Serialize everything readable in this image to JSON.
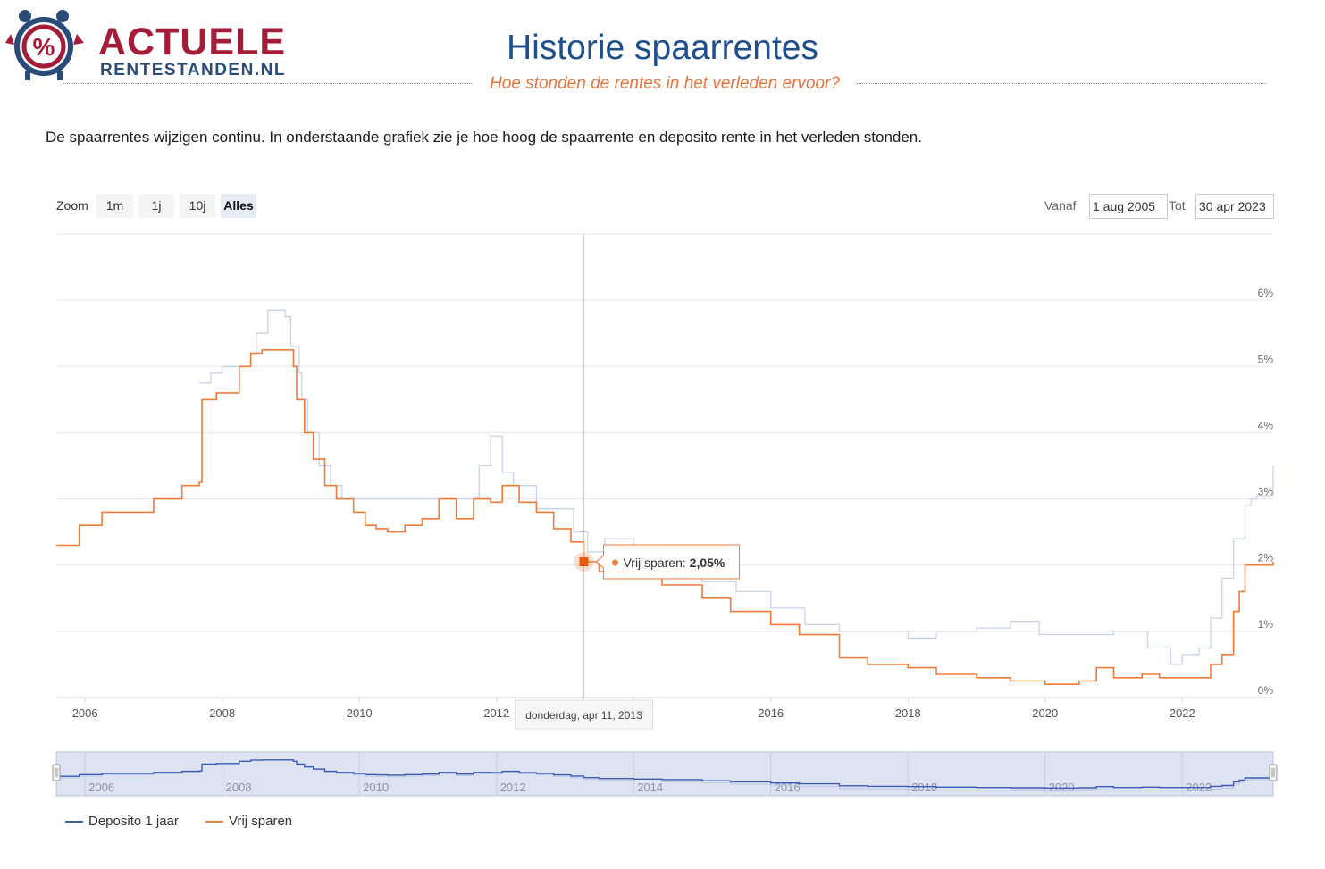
{
  "brand": {
    "name_line1": "ACTUELE",
    "name_line2": "RENTESTANDEN.NL"
  },
  "header": {
    "title": "Historie spaarrentes",
    "subtitle": "Hoe stonden de rentes in het verleden ervoor?"
  },
  "intro": "De spaarrentes wijzigen continu. In onderstaande grafiek zie je hoe hoog de spaarrente en deposito rente in het verleden stonden.",
  "range_selector": {
    "zoom_label": "Zoom",
    "buttons": [
      "1m",
      "1j",
      "10j",
      "Alles"
    ],
    "active": "Alles",
    "from_label": "Vanaf",
    "from_value": "1 aug 2005",
    "to_label": "Tot",
    "to_value": "30 apr 2023"
  },
  "tooltip": {
    "series": "Vrij sparen",
    "value": "2,05%",
    "date": "donderdag, apr 11, 2013"
  },
  "colors": {
    "deposito": "#3b5bb5",
    "vrij_sparen": "#f07c3a",
    "brand_red": "#a51c38",
    "brand_blue": "#1f4e8c"
  },
  "chart_data": {
    "type": "line",
    "x_tick_labels": [
      "2006",
      "2008",
      "2010",
      "2012",
      "2014",
      "2016",
      "2018",
      "2020",
      "2022"
    ],
    "y_tick_labels": [
      "0%",
      "1%",
      "2%",
      "3%",
      "4%",
      "5%",
      "6%"
    ],
    "ylim": [
      0,
      7
    ],
    "xlim": [
      "2005-08-01",
      "2023-04-30"
    ],
    "grid": true,
    "legend_position": "bottom-left",
    "navigator_labels": [
      "2006",
      "2008",
      "2010",
      "2012",
      "2014",
      "2016",
      "2018",
      "2020",
      "2022"
    ],
    "series": [
      {
        "name": "Deposito 1 jaar",
        "color": "#3b5bb5",
        "points": [
          [
            "2007-09-01",
            4.75
          ],
          [
            "2007-11-01",
            4.9
          ],
          [
            "2008-01-01",
            5.0
          ],
          [
            "2008-04-01",
            5.0
          ],
          [
            "2008-06-01",
            5.2
          ],
          [
            "2008-07-01",
            5.5
          ],
          [
            "2008-09-01",
            5.85
          ],
          [
            "2008-12-01",
            5.75
          ],
          [
            "2009-01-01",
            5.3
          ],
          [
            "2009-02-15",
            4.9
          ],
          [
            "2009-03-01",
            4.5
          ],
          [
            "2009-04-01",
            4.0
          ],
          [
            "2009-06-01",
            3.5
          ],
          [
            "2009-08-01",
            3.2
          ],
          [
            "2009-10-01",
            3.0
          ],
          [
            "2010-03-01",
            3.0
          ],
          [
            "2011-07-01",
            3.0
          ],
          [
            "2011-10-01",
            3.5
          ],
          [
            "2011-12-01",
            3.95
          ],
          [
            "2012-02-01",
            3.4
          ],
          [
            "2012-04-01",
            3.2
          ],
          [
            "2012-08-01",
            2.85
          ],
          [
            "2013-01-01",
            2.85
          ],
          [
            "2013-02-15",
            2.5
          ],
          [
            "2013-05-01",
            2.2
          ],
          [
            "2013-08-01",
            2.4
          ],
          [
            "2014-01-01",
            2.2
          ],
          [
            "2014-06-01",
            2.05
          ],
          [
            "2015-01-01",
            1.75
          ],
          [
            "2015-07-01",
            1.6
          ],
          [
            "2016-01-01",
            1.35
          ],
          [
            "2016-07-01",
            1.1
          ],
          [
            "2017-01-01",
            1.0
          ],
          [
            "2017-07-01",
            1.0
          ],
          [
            "2018-01-01",
            0.9
          ],
          [
            "2018-06-01",
            1.0
          ],
          [
            "2019-01-01",
            1.05
          ],
          [
            "2019-07-01",
            1.15
          ],
          [
            "2019-12-01",
            0.95
          ],
          [
            "2020-06-01",
            0.95
          ],
          [
            "2021-01-01",
            1.0
          ],
          [
            "2021-07-01",
            0.75
          ],
          [
            "2021-11-01",
            0.5
          ],
          [
            "2022-01-01",
            0.65
          ],
          [
            "2022-04-01",
            0.75
          ],
          [
            "2022-06-01",
            1.2
          ],
          [
            "2022-08-01",
            1.8
          ],
          [
            "2022-10-01",
            2.4
          ],
          [
            "2022-12-01",
            2.9
          ],
          [
            "2023-01-01",
            3.0
          ],
          [
            "2023-02-01",
            3.05
          ],
          [
            "2023-04-30",
            3.5
          ]
        ]
      },
      {
        "name": "Vrij sparen",
        "color": "#f07c3a",
        "points": [
          [
            "2005-08-01",
            2.3
          ],
          [
            "2005-12-01",
            2.6
          ],
          [
            "2006-04-01",
            2.8
          ],
          [
            "2006-08-01",
            2.8
          ],
          [
            "2007-01-01",
            3.0
          ],
          [
            "2007-06-01",
            3.2
          ],
          [
            "2007-09-01",
            3.25
          ],
          [
            "2007-09-15",
            4.5
          ],
          [
            "2007-12-01",
            4.6
          ],
          [
            "2008-04-01",
            5.0
          ],
          [
            "2008-06-01",
            5.2
          ],
          [
            "2008-08-01",
            5.25
          ],
          [
            "2008-12-01",
            5.25
          ],
          [
            "2009-01-15",
            5.0
          ],
          [
            "2009-02-01",
            4.5
          ],
          [
            "2009-03-15",
            4.0
          ],
          [
            "2009-05-01",
            3.6
          ],
          [
            "2009-07-01",
            3.2
          ],
          [
            "2009-09-01",
            3.0
          ],
          [
            "2009-12-01",
            2.8
          ],
          [
            "2010-02-01",
            2.6
          ],
          [
            "2010-04-01",
            2.55
          ],
          [
            "2010-06-01",
            2.5
          ],
          [
            "2010-09-01",
            2.6
          ],
          [
            "2010-12-01",
            2.7
          ],
          [
            "2011-03-01",
            3.0
          ],
          [
            "2011-06-01",
            2.7
          ],
          [
            "2011-09-01",
            3.0
          ],
          [
            "2011-12-01",
            2.95
          ],
          [
            "2012-02-01",
            3.2
          ],
          [
            "2012-05-01",
            2.95
          ],
          [
            "2012-08-01",
            2.8
          ],
          [
            "2012-11-01",
            2.55
          ],
          [
            "2013-02-01",
            2.35
          ],
          [
            "2013-04-11",
            2.05
          ],
          [
            "2013-07-01",
            1.9
          ],
          [
            "2014-01-01",
            1.8
          ],
          [
            "2014-06-01",
            1.7
          ],
          [
            "2015-01-01",
            1.5
          ],
          [
            "2015-06-01",
            1.3
          ],
          [
            "2016-01-01",
            1.1
          ],
          [
            "2016-06-01",
            0.95
          ],
          [
            "2017-01-01",
            0.6
          ],
          [
            "2017-06-01",
            0.5
          ],
          [
            "2018-01-01",
            0.45
          ],
          [
            "2018-06-01",
            0.35
          ],
          [
            "2019-01-01",
            0.3
          ],
          [
            "2019-07-01",
            0.25
          ],
          [
            "2020-01-01",
            0.2
          ],
          [
            "2020-07-01",
            0.25
          ],
          [
            "2020-10-01",
            0.45
          ],
          [
            "2021-01-01",
            0.3
          ],
          [
            "2021-06-01",
            0.35
          ],
          [
            "2021-09-01",
            0.3
          ],
          [
            "2022-01-01",
            0.3
          ],
          [
            "2022-04-01",
            0.3
          ],
          [
            "2022-06-01",
            0.5
          ],
          [
            "2022-08-01",
            0.65
          ],
          [
            "2022-10-01",
            1.3
          ],
          [
            "2022-11-01",
            1.6
          ],
          [
            "2022-12-01",
            2.0
          ],
          [
            "2023-04-30",
            2.05
          ]
        ]
      }
    ]
  }
}
